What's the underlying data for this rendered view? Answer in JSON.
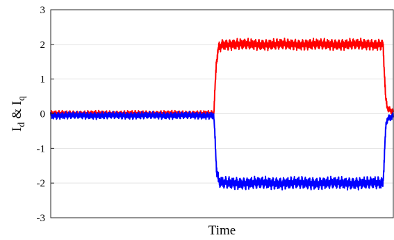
{
  "chart_data": {
    "type": "line",
    "title": "",
    "xlabel": "Time",
    "ylabel": {
      "text": "I",
      "sub_d": "d",
      "amp": " & ",
      "text2": "I",
      "sub_q": "q"
    },
    "xlim": [
      0,
      100
    ],
    "ylim": [
      -3,
      3
    ],
    "yticks": [
      "3",
      "2",
      "1",
      "0",
      "-1",
      "-2",
      "-3"
    ],
    "grid": "horizontal",
    "legend": "none",
    "series": [
      {
        "color": "#ff0000",
        "ripple": 0.18,
        "points": [
          [
            0,
            0
          ],
          [
            47.6,
            0
          ],
          [
            48.0,
            0.8
          ],
          [
            48.4,
            1.55
          ],
          [
            49.0,
            1.9
          ],
          [
            50.0,
            2.0
          ],
          [
            97.0,
            2.0
          ],
          [
            97.4,
            1.2
          ],
          [
            97.8,
            0.4
          ],
          [
            98.2,
            0.2
          ],
          [
            98.8,
            0.1
          ],
          [
            100,
            0.05
          ]
        ]
      },
      {
        "color": "#0000ff",
        "ripple": 0.2,
        "points": [
          [
            0,
            -0.05
          ],
          [
            47.6,
            -0.05
          ],
          [
            48.0,
            -0.8
          ],
          [
            48.4,
            -1.6
          ],
          [
            49.0,
            -1.95
          ],
          [
            50.0,
            -2.0
          ],
          [
            97.0,
            -2.0
          ],
          [
            97.4,
            -1.2
          ],
          [
            97.8,
            -0.4
          ],
          [
            98.2,
            -0.15
          ],
          [
            100,
            -0.05
          ]
        ]
      }
    ]
  }
}
